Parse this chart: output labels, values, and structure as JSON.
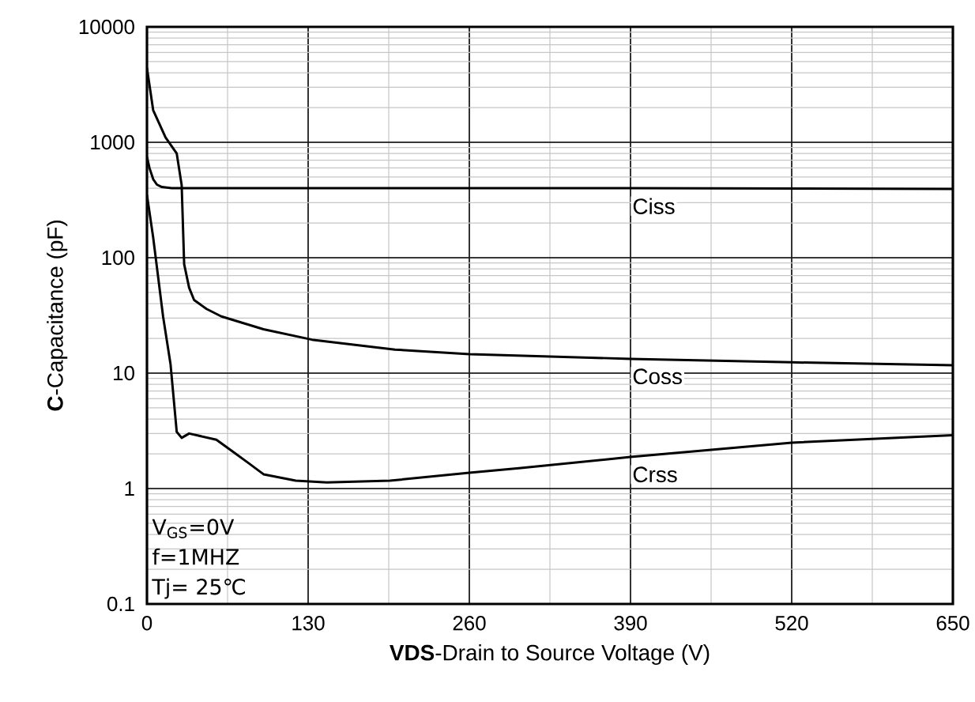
{
  "chart_data": {
    "type": "line",
    "xlabel": "**VDS**-Drain to Source Voltage (V)",
    "ylabel": "**C**-Capacitance (pF)",
    "log": "y",
    "grid": true,
    "marker": "none",
    "line_style": "solid",
    "xlim": [
      0,
      650
    ],
    "xticks": [
      0,
      130,
      260,
      390,
      520,
      650
    ],
    "ylim": [
      0.1,
      10000
    ],
    "yticks": [
      0.1,
      1,
      10,
      100,
      1000,
      10000
    ],
    "series": [
      {
        "name": "Ciss",
        "color": "#000000",
        "x": [
          0,
          2,
          5,
          8,
          12,
          20,
          100,
          390,
          650
        ],
        "values": [
          750,
          600,
          480,
          430,
          410,
          400,
          400,
          400,
          395
        ]
      },
      {
        "name": "Coss",
        "color": "#000000",
        "x": [
          0,
          5,
          15,
          24,
          28,
          30,
          34,
          38,
          48,
          60,
          94,
          133,
          200,
          260,
          390,
          520,
          650
        ],
        "values": [
          4400,
          1900,
          1100,
          800,
          425,
          88,
          55,
          43,
          36,
          31,
          24,
          19.5,
          16,
          14.6,
          13.3,
          12.4,
          11.7
        ]
      },
      {
        "name": "Crss",
        "color": "#000000",
        "x": [
          0,
          5,
          13,
          19,
          24,
          28,
          34,
          56,
          69,
          82,
          94,
          120,
          145,
          196,
          260,
          300,
          390,
          520,
          650
        ],
        "values": [
          350,
          150,
          31,
          12,
          3.1,
          2.75,
          3.0,
          2.65,
          2.1,
          1.66,
          1.33,
          1.17,
          1.13,
          1.17,
          1.37,
          1.5,
          1.88,
          2.5,
          2.9
        ]
      }
    ],
    "annotations": [
      "V$_{GS}$=0V",
      "f=1MHZ",
      "Tj= 25℃"
    ]
  }
}
